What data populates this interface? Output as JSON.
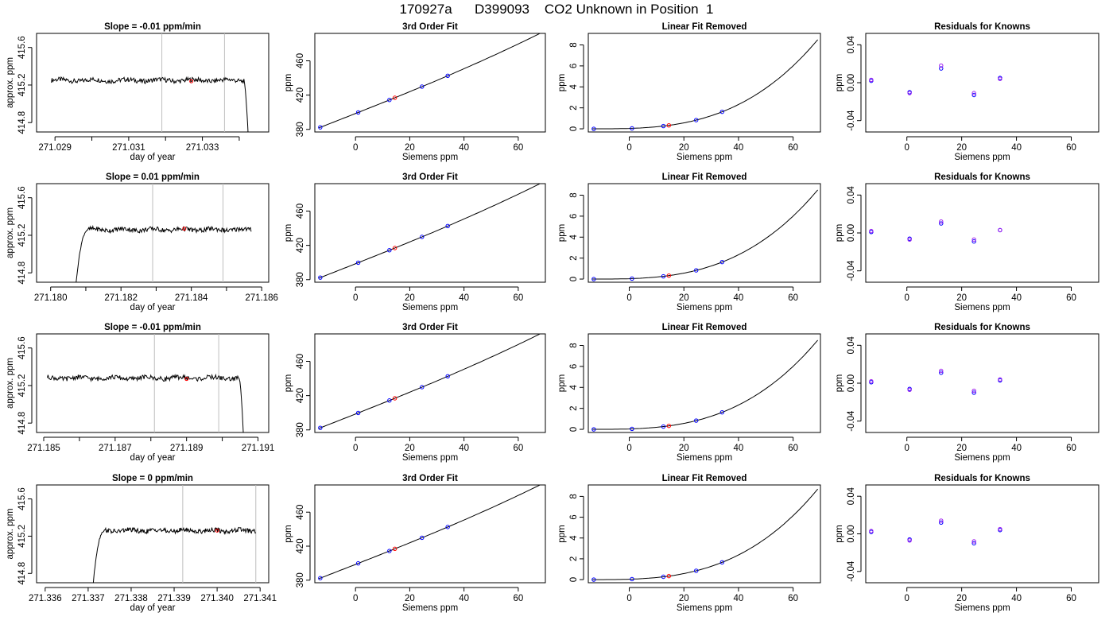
{
  "title": "170927a      D399093    CO2 Unknown in Position  1",
  "colors": {
    "line": "#000000",
    "grid": "#bebebe",
    "known": "#0000ff",
    "unknown": "#ff0000",
    "resid_a": "#0000ff",
    "resid_b": "#a020f0"
  },
  "chart_data": [
    {
      "type": "line",
      "row": 1,
      "panel": "timeseries",
      "title": "Slope =  -0.01  ppm/min",
      "xlabel": "day of year",
      "ylabel": "approx. ppm",
      "xlim": [
        271.0285,
        271.0348
      ],
      "ylim": [
        414.7,
        415.75
      ],
      "xticks": [
        271.029,
        271.03,
        271.031,
        271.032,
        271.033,
        271.034
      ],
      "xticklabels": [
        "271.029",
        "",
        "271.031",
        "",
        "271.033",
        ""
      ],
      "yticks": [
        414.8,
        415.2,
        415.6
      ],
      "yticklabels": [
        "414.8",
        "415.2",
        "415.6"
      ],
      "vlines": [
        271.0319,
        271.0336
      ],
      "trace": {
        "x_start": 271.0289,
        "x_end": 271.03425,
        "level": 415.25,
        "drop": "end",
        "drop_to": 414.6
      },
      "marker": {
        "x": 271.0327,
        "y": 415.24
      }
    },
    {
      "type": "line",
      "row": 1,
      "panel": "fit",
      "title": "3rd Order Fit",
      "xlabel": "Siemens ppm",
      "ylabel": "ppm",
      "xlim": [
        -15,
        70
      ],
      "ylim": [
        377,
        492
      ],
      "xticks": [
        0,
        20,
        40,
        60
      ],
      "xticklabels": [
        "0",
        "20",
        "40",
        "60"
      ],
      "yticks": [
        380,
        420,
        460
      ],
      "yticklabels": [
        "380",
        "420",
        "460"
      ],
      "curve": {
        "from": -13.5,
        "to": 69,
        "coef": [
          398.55,
          1.25,
          0.0008,
          1.5e-05
        ]
      },
      "knowns": [
        -13,
        1,
        12.5,
        24.5,
        34
      ],
      "unknowns": [
        14.5
      ]
    },
    {
      "type": "line",
      "row": 1,
      "panel": "linear_removed",
      "title": "Linear Fit Removed",
      "xlabel": "Siemens ppm",
      "ylabel": "ppm",
      "xlim": [
        -15,
        70
      ],
      "ylim": [
        -0.3,
        9.1
      ],
      "xticks": [
        0,
        20,
        40,
        60
      ],
      "xticklabels": [
        "0",
        "20",
        "40",
        "60"
      ],
      "yticks": [
        0,
        2,
        4,
        6,
        8
      ],
      "yticklabels": [
        "0",
        "2",
        "4",
        "6",
        "8"
      ],
      "curve": {
        "from": -13.5,
        "to": 69,
        "base": 8.5
      },
      "knowns": [
        -13,
        1,
        12.5,
        24.5,
        34
      ],
      "unknowns": [
        14.5
      ]
    },
    {
      "type": "scatter",
      "row": 1,
      "panel": "residuals",
      "title": "Residuals for Knowns",
      "xlabel": "Siemens ppm",
      "ylabel": "ppm",
      "xlim": [
        -15,
        70
      ],
      "ylim": [
        -0.052,
        0.052
      ],
      "xticks": [
        0,
        20,
        40,
        60
      ],
      "xticklabels": [
        "0",
        "20",
        "40",
        "60"
      ],
      "yticks": [
        -0.04,
        0.0,
        0.04
      ],
      "yticklabels": [
        "-0.04",
        "0.00",
        "0.04"
      ],
      "points_a": [
        [
          -13,
          0.002
        ],
        [
          1,
          -0.01
        ],
        [
          12.5,
          0.015
        ],
        [
          24.5,
          -0.013
        ],
        [
          34,
          0.005
        ]
      ],
      "points_b": [
        [
          -13,
          0.003
        ],
        [
          1,
          -0.011
        ],
        [
          12.5,
          0.018
        ],
        [
          24.5,
          -0.011
        ],
        [
          34,
          0.004
        ]
      ]
    },
    {
      "type": "line",
      "row": 2,
      "panel": "timeseries",
      "title": "Slope =  0.01  ppm/min",
      "xlabel": "day of year",
      "ylabel": "approx. ppm",
      "xlim": [
        271.1796,
        271.1862
      ],
      "ylim": [
        414.7,
        415.75
      ],
      "xticks": [
        271.18,
        271.181,
        271.182,
        271.183,
        271.184,
        271.185,
        271.186
      ],
      "xticklabels": [
        "271.180",
        "",
        "271.182",
        "",
        "271.184",
        "",
        "271.186"
      ],
      "yticks": [
        414.8,
        415.2,
        415.6
      ],
      "yticklabels": [
        "414.8",
        "415.2",
        "415.6"
      ],
      "vlines": [
        271.1829,
        271.1849
      ],
      "trace": {
        "x_start": 271.1807,
        "x_end": 271.1857,
        "level": 415.26,
        "drop": "start",
        "drop_to": 414.6
      },
      "marker": {
        "x": 271.1838,
        "y": 415.27
      }
    },
    {
      "type": "line",
      "row": 2,
      "panel": "fit",
      "title": "3rd Order Fit",
      "xlabel": "Siemens ppm",
      "ylabel": "ppm",
      "xlim": [
        -15,
        70
      ],
      "ylim": [
        377,
        492
      ],
      "xticks": [
        0,
        20,
        40,
        60
      ],
      "xticklabels": [
        "0",
        "20",
        "40",
        "60"
      ],
      "yticks": [
        380,
        420,
        460
      ],
      "yticklabels": [
        "380",
        "420",
        "460"
      ],
      "curve": {
        "from": -13.5,
        "to": 69,
        "coef": [
          398.55,
          1.25,
          0.0008,
          1.5e-05
        ]
      },
      "knowns": [
        -13,
        1,
        12.5,
        24.5,
        34
      ],
      "unknowns": [
        14.5
      ]
    },
    {
      "type": "line",
      "row": 2,
      "panel": "linear_removed",
      "title": "Linear Fit Removed",
      "xlabel": "Siemens ppm",
      "ylabel": "ppm",
      "xlim": [
        -15,
        70
      ],
      "ylim": [
        -0.3,
        9.1
      ],
      "xticks": [
        0,
        20,
        40,
        60
      ],
      "xticklabels": [
        "0",
        "20",
        "40",
        "60"
      ],
      "yticks": [
        0,
        2,
        4,
        6,
        8
      ],
      "yticklabels": [
        "0",
        "2",
        "4",
        "6",
        "8"
      ],
      "curve": {
        "from": -13.5,
        "to": 69,
        "base": 8.5
      },
      "knowns": [
        -13,
        1,
        12.5,
        24.5,
        34
      ],
      "unknowns": [
        14.5
      ]
    },
    {
      "type": "scatter",
      "row": 2,
      "panel": "residuals",
      "title": "Residuals for Knowns",
      "xlabel": "Siemens ppm",
      "ylabel": "ppm",
      "xlim": [
        -15,
        70
      ],
      "ylim": [
        -0.052,
        0.052
      ],
      "xticks": [
        0,
        20,
        40,
        60
      ],
      "xticklabels": [
        "0",
        "20",
        "40",
        "60"
      ],
      "yticks": [
        -0.04,
        0.0,
        0.04
      ],
      "yticklabels": [
        "-0.04",
        "0.00",
        "0.04"
      ],
      "points_a": [
        [
          -13,
          0.001
        ],
        [
          1,
          -0.006
        ],
        [
          12.5,
          0.01
        ],
        [
          24.5,
          -0.009
        ],
        [
          34,
          0.003
        ]
      ],
      "points_b": [
        [
          -13,
          0.002
        ],
        [
          1,
          -0.007
        ],
        [
          12.5,
          0.012
        ],
        [
          24.5,
          -0.007
        ],
        [
          34,
          0.003
        ]
      ]
    },
    {
      "type": "line",
      "row": 3,
      "panel": "timeseries",
      "title": "Slope =  -0.01  ppm/min",
      "xlabel": "day of year",
      "ylabel": "approx. ppm",
      "xlim": [
        271.1848,
        271.1913
      ],
      "ylim": [
        414.7,
        415.75
      ],
      "xticks": [
        271.185,
        271.186,
        271.187,
        271.188,
        271.189,
        271.19,
        271.191
      ],
      "xticklabels": [
        "271.185",
        "",
        "271.187",
        "",
        "271.189",
        "",
        "271.191"
      ],
      "yticks": [
        414.8,
        415.2,
        415.6
      ],
      "yticklabels": [
        "414.8",
        "415.2",
        "415.6"
      ],
      "vlines": [
        271.1881,
        271.1899
      ],
      "trace": {
        "x_start": 271.1851,
        "x_end": 271.1906,
        "level": 415.28,
        "drop": "end",
        "drop_to": 414.6
      },
      "marker": {
        "x": 271.189,
        "y": 415.27
      }
    },
    {
      "type": "line",
      "row": 3,
      "panel": "fit",
      "title": "3rd Order Fit",
      "xlabel": "Siemens ppm",
      "ylabel": "ppm",
      "xlim": [
        -15,
        70
      ],
      "ylim": [
        377,
        492
      ],
      "xticks": [
        0,
        20,
        40,
        60
      ],
      "xticklabels": [
        "0",
        "20",
        "40",
        "60"
      ],
      "yticks": [
        380,
        420,
        460
      ],
      "yticklabels": [
        "380",
        "420",
        "460"
      ],
      "curve": {
        "from": -13.5,
        "to": 69,
        "coef": [
          398.55,
          1.25,
          0.0008,
          1.5e-05
        ]
      },
      "knowns": [
        -13,
        1,
        12.5,
        24.5,
        34
      ],
      "unknowns": [
        14.5
      ]
    },
    {
      "type": "line",
      "row": 3,
      "panel": "linear_removed",
      "title": "Linear Fit Removed",
      "xlabel": "Siemens ppm",
      "ylabel": "ppm",
      "xlim": [
        -15,
        70
      ],
      "ylim": [
        -0.3,
        9.1
      ],
      "xticks": [
        0,
        20,
        40,
        60
      ],
      "xticklabels": [
        "0",
        "20",
        "40",
        "60"
      ],
      "yticks": [
        0,
        2,
        4,
        6,
        8
      ],
      "yticklabels": [
        "0",
        "2",
        "4",
        "6",
        "8"
      ],
      "curve": {
        "from": -13.5,
        "to": 69,
        "base": 8.5
      },
      "knowns": [
        -13,
        1,
        12.5,
        24.5,
        34
      ],
      "unknowns": [
        14.5
      ]
    },
    {
      "type": "scatter",
      "row": 3,
      "panel": "residuals",
      "title": "Residuals for Knowns",
      "xlabel": "Siemens ppm",
      "ylabel": "ppm",
      "xlim": [
        -15,
        70
      ],
      "ylim": [
        -0.052,
        0.052
      ],
      "xticks": [
        0,
        20,
        40,
        60
      ],
      "xticklabels": [
        "0",
        "20",
        "40",
        "60"
      ],
      "yticks": [
        -0.04,
        0.0,
        0.04
      ],
      "yticklabels": [
        "-0.04",
        "0.00",
        "0.04"
      ],
      "points_a": [
        [
          -13,
          0.001
        ],
        [
          1,
          -0.006
        ],
        [
          12.5,
          0.011
        ],
        [
          24.5,
          -0.01
        ],
        [
          34,
          0.003
        ]
      ],
      "points_b": [
        [
          -13,
          0.002
        ],
        [
          1,
          -0.007
        ],
        [
          12.5,
          0.013
        ],
        [
          24.5,
          -0.008
        ],
        [
          34,
          0.004
        ]
      ]
    },
    {
      "type": "line",
      "row": 4,
      "panel": "timeseries",
      "title": "Slope =  0  ppm/min",
      "xlabel": "day of year",
      "ylabel": "approx. ppm",
      "xlim": [
        271.3358,
        271.3412
      ],
      "ylim": [
        414.7,
        415.75
      ],
      "xticks": [
        271.336,
        271.337,
        271.338,
        271.339,
        271.34,
        271.341
      ],
      "xticklabels": [
        "271.336",
        "271.337",
        "271.338",
        "271.339",
        "271.340",
        "271.341"
      ],
      "yticks": [
        414.8,
        415.2,
        415.6
      ],
      "yticklabels": [
        "414.8",
        "415.2",
        "415.6"
      ],
      "vlines": [
        271.3392,
        271.3409
      ],
      "trace": {
        "x_start": 271.3371,
        "x_end": 271.3409,
        "level": 415.26,
        "drop": "start",
        "drop_to": 414.6
      },
      "marker": {
        "x": 271.34,
        "y": 415.26
      }
    },
    {
      "type": "line",
      "row": 4,
      "panel": "fit",
      "title": "3rd Order Fit",
      "xlabel": "Siemens ppm",
      "ylabel": "ppm",
      "xlim": [
        -15,
        70
      ],
      "ylim": [
        377,
        492
      ],
      "xticks": [
        0,
        20,
        40,
        60
      ],
      "xticklabels": [
        "0",
        "20",
        "40",
        "60"
      ],
      "yticks": [
        380,
        420,
        460
      ],
      "yticklabels": [
        "380",
        "420",
        "460"
      ],
      "curve": {
        "from": -13.5,
        "to": 69,
        "coef": [
          398.55,
          1.25,
          0.0008,
          1.5e-05
        ]
      },
      "knowns": [
        -13,
        1,
        12.5,
        24.5,
        34
      ],
      "unknowns": [
        14.5
      ]
    },
    {
      "type": "line",
      "row": 4,
      "panel": "linear_removed",
      "title": "Linear Fit Removed",
      "xlabel": "Siemens ppm",
      "ylabel": "ppm",
      "xlim": [
        -15,
        70
      ],
      "ylim": [
        -0.3,
        9.1
      ],
      "xticks": [
        0,
        20,
        40,
        60
      ],
      "xticklabels": [
        "0",
        "20",
        "40",
        "60"
      ],
      "yticks": [
        0,
        2,
        4,
        6,
        8
      ],
      "yticklabels": [
        "0",
        "2",
        "4",
        "6",
        "8"
      ],
      "curve": {
        "from": -13.5,
        "to": 69,
        "base": 8.7
      },
      "knowns": [
        -13,
        1,
        12.5,
        24.5,
        34
      ],
      "unknowns": [
        14.5
      ]
    },
    {
      "type": "scatter",
      "row": 4,
      "panel": "residuals",
      "title": "Residuals for Knowns",
      "xlabel": "Siemens ppm",
      "ylabel": "ppm",
      "xlim": [
        -15,
        70
      ],
      "ylim": [
        -0.052,
        0.052
      ],
      "xticks": [
        0,
        20,
        40,
        60
      ],
      "xticklabels": [
        "0",
        "20",
        "40",
        "60"
      ],
      "yticks": [
        -0.04,
        0.0,
        0.04
      ],
      "yticklabels": [
        "-0.04",
        "0.00",
        "0.04"
      ],
      "points_a": [
        [
          -13,
          0.002
        ],
        [
          1,
          -0.006
        ],
        [
          12.5,
          0.012
        ],
        [
          24.5,
          -0.01
        ],
        [
          34,
          0.004
        ]
      ],
      "points_b": [
        [
          -13,
          0.003
        ],
        [
          1,
          -0.007
        ],
        [
          12.5,
          0.014
        ],
        [
          24.5,
          -0.008
        ],
        [
          34,
          0.005
        ]
      ]
    }
  ]
}
